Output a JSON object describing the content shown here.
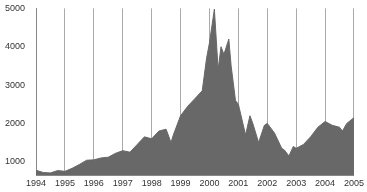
{
  "chart_data": {
    "type": "area",
    "x": [
      1994.0,
      1994.25,
      1994.5,
      1994.75,
      1995.0,
      1995.25,
      1995.5,
      1995.75,
      1996.0,
      1996.25,
      1996.5,
      1996.75,
      1997.0,
      1997.25,
      1997.5,
      1997.75,
      1998.0,
      1998.25,
      1998.5,
      1998.67,
      1998.75,
      1999.0,
      1999.25,
      1999.5,
      1999.75,
      1999.9,
      2000.0,
      2000.17,
      2000.3,
      2000.4,
      2000.5,
      2000.67,
      2000.75,
      2000.9,
      2001.0,
      2001.25,
      2001.4,
      2001.5,
      2001.7,
      2001.9,
      2002.0,
      2002.25,
      2002.5,
      2002.6,
      2002.75,
      2002.9,
      2003.0,
      2003.25,
      2003.5,
      2003.75,
      2004.0,
      2004.25,
      2004.5,
      2004.6,
      2004.75,
      2005.0
    ],
    "values": [
      780,
      720,
      710,
      770,
      750,
      830,
      930,
      1040,
      1050,
      1100,
      1120,
      1220,
      1290,
      1250,
      1450,
      1650,
      1600,
      1800,
      1850,
      1500,
      1700,
      2200,
      2450,
      2650,
      2850,
      3700,
      4100,
      4980,
      3400,
      4000,
      3800,
      4200,
      3500,
      2600,
      2500,
      1700,
      2200,
      2000,
      1500,
      1950,
      2000,
      1750,
      1350,
      1300,
      1150,
      1400,
      1350,
      1450,
      1650,
      1900,
      2050,
      1950,
      1900,
      1800,
      2000,
      2150
    ],
    "color": "#686868",
    "xlim": [
      1994,
      2005
    ],
    "xticks": [
      1994,
      1995,
      1996,
      1997,
      1998,
      1999,
      2000,
      2001,
      2002,
      2003,
      2004,
      2005
    ],
    "ylim": [
      650,
      5000
    ],
    "yticks": [
      1000,
      2000,
      3000,
      4000,
      5000
    ],
    "grid": "x"
  }
}
